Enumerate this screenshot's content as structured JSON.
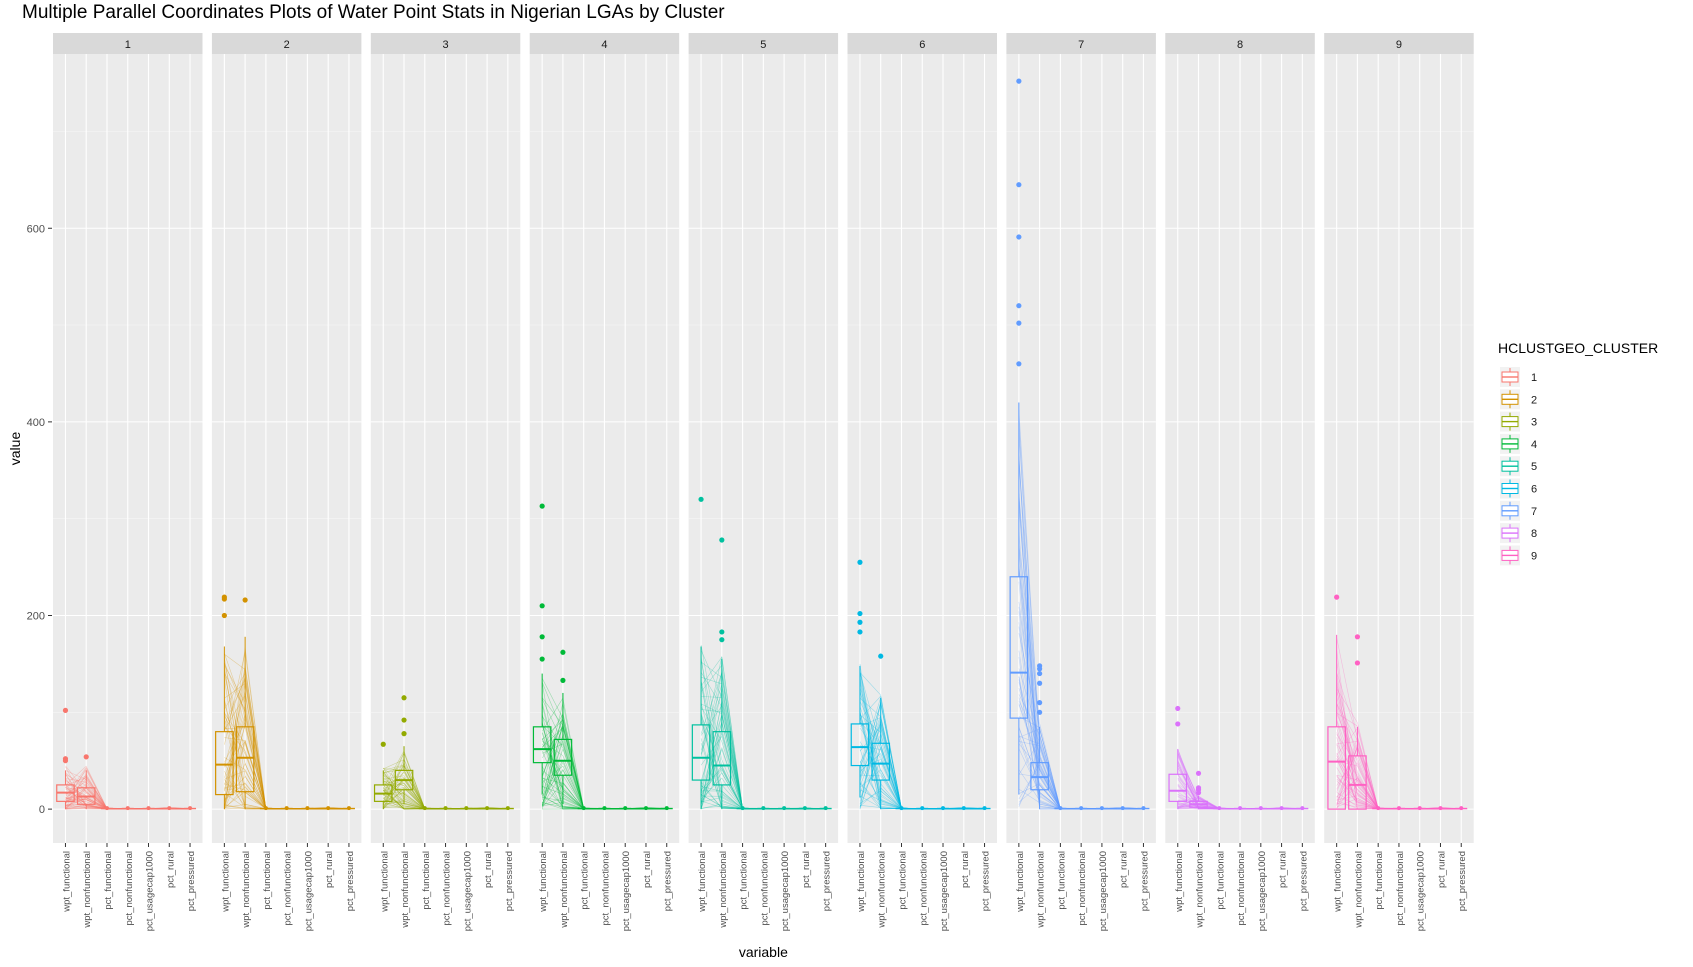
{
  "chart_data": {
    "type": "parallel-coordinates-boxplot",
    "title": "Multiple Parallel Coordinates Plots of Water Point Stats in Nigerian LGAs by Cluster",
    "xlabel": "variable",
    "ylabel": "value",
    "ylim": [
      -35,
      780
    ],
    "y_ticks": [
      0,
      200,
      400,
      600
    ],
    "categories": [
      "wpt_functional",
      "wpt_nonfunctional",
      "pct_functional",
      "pct_nonfunctional",
      "pct_usagecap1000",
      "pct_rural",
      "pct_pressured"
    ],
    "legend_title": "HCLUSTGEO_CLUSTER",
    "legend_position": "right",
    "grid": true,
    "panels": [
      {
        "label": "1",
        "color": "#F8766D",
        "boxes": [
          {
            "q1": 8,
            "median": 17,
            "q3": 25,
            "wlo": 0,
            "whi": 40,
            "outliers": [
              102,
              52,
              50
            ]
          },
          {
            "q1": 5,
            "median": 13,
            "q3": 22,
            "wlo": 0,
            "whi": 40,
            "outliers": [
              54
            ]
          }
        ],
        "line_max": [
          45,
          45,
          1.2,
          1,
          1,
          1.5,
          1
        ]
      },
      {
        "label": "2",
        "color": "#D39200",
        "boxes": [
          {
            "q1": 15,
            "median": 46,
            "q3": 80,
            "wlo": 0,
            "whi": 168,
            "outliers": [
              219,
              217,
              200
            ]
          },
          {
            "q1": 18,
            "median": 53,
            "q3": 85,
            "wlo": 0,
            "whi": 178,
            "outliers": [
              216
            ]
          }
        ],
        "line_max": [
          170,
          180,
          1.2,
          1,
          1,
          1.5,
          1
        ]
      },
      {
        "label": "3",
        "color": "#93AA00",
        "boxes": [
          {
            "q1": 8,
            "median": 16,
            "q3": 25,
            "wlo": 0,
            "whi": 40,
            "outliers": [
              67
            ]
          },
          {
            "q1": 20,
            "median": 30,
            "q3": 40,
            "wlo": 5,
            "whi": 65,
            "outliers": [
              115,
              92,
              78
            ]
          }
        ],
        "line_max": [
          45,
          70,
          1.2,
          1,
          1,
          1.5,
          1
        ]
      },
      {
        "label": "4",
        "color": "#00BA38",
        "boxes": [
          {
            "q1": 48,
            "median": 62,
            "q3": 85,
            "wlo": 15,
            "whi": 140,
            "outliers": [
              313,
              210,
              178,
              155
            ]
          },
          {
            "q1": 35,
            "median": 50,
            "q3": 72,
            "wlo": 5,
            "whi": 120,
            "outliers": [
              162,
              133
            ]
          }
        ],
        "line_max": [
          140,
          120,
          1.2,
          1,
          1,
          1.5,
          1
        ]
      },
      {
        "label": "5",
        "color": "#00C19F",
        "boxes": [
          {
            "q1": 30,
            "median": 53,
            "q3": 87,
            "wlo": 0,
            "whi": 168,
            "outliers": [
              320
            ]
          },
          {
            "q1": 25,
            "median": 45,
            "q3": 80,
            "wlo": 0,
            "whi": 155,
            "outliers": [
              278,
              183,
              175
            ]
          }
        ],
        "line_max": [
          170,
          160,
          1.2,
          1,
          1,
          1.5,
          1
        ]
      },
      {
        "label": "6",
        "color": "#00B9E3",
        "boxes": [
          {
            "q1": 45,
            "median": 64,
            "q3": 88,
            "wlo": 12,
            "whi": 148,
            "outliers": [
              255,
              202,
              193,
              183
            ]
          },
          {
            "q1": 30,
            "median": 47,
            "q3": 68,
            "wlo": 0,
            "whi": 115,
            "outliers": [
              158
            ]
          }
        ],
        "line_max": [
          150,
          120,
          1.2,
          1,
          1,
          1.5,
          1
        ]
      },
      {
        "label": "7",
        "color": "#619CFF",
        "boxes": [
          {
            "q1": 94,
            "median": 141,
            "q3": 240,
            "wlo": 15,
            "whi": 420,
            "outliers": [
              752,
              645,
              591,
              520,
              502,
              460
            ]
          },
          {
            "q1": 20,
            "median": 33,
            "q3": 48,
            "wlo": 0,
            "whi": 85,
            "outliers": [
              148,
              145,
              140,
              130,
              110,
              100
            ]
          }
        ],
        "line_max": [
          420,
          90,
          1.2,
          1,
          1,
          1.5,
          1
        ]
      },
      {
        "label": "8",
        "color": "#DB72FB",
        "boxes": [
          {
            "q1": 8,
            "median": 19,
            "q3": 36,
            "wlo": 0,
            "whi": 62,
            "outliers": [
              104,
              88
            ]
          },
          {
            "q1": 2,
            "median": 5,
            "q3": 8,
            "wlo": 0,
            "whi": 14,
            "outliers": [
              37,
              22,
              20,
              17
            ]
          }
        ],
        "line_max": [
          65,
          15,
          1.2,
          1,
          1,
          1.5,
          1
        ]
      },
      {
        "label": "9",
        "color": "#FF61C3",
        "boxes": [
          {
            "q1": 0,
            "median": 49,
            "q3": 85,
            "wlo": 0,
            "whi": 180,
            "outliers": [
              219
            ]
          },
          {
            "q1": 0,
            "median": 25,
            "q3": 55,
            "wlo": 0,
            "whi": 85,
            "outliers": [
              178,
              151
            ]
          }
        ],
        "line_max": [
          180,
          90,
          1.2,
          1,
          1,
          1.5,
          1
        ]
      }
    ]
  }
}
